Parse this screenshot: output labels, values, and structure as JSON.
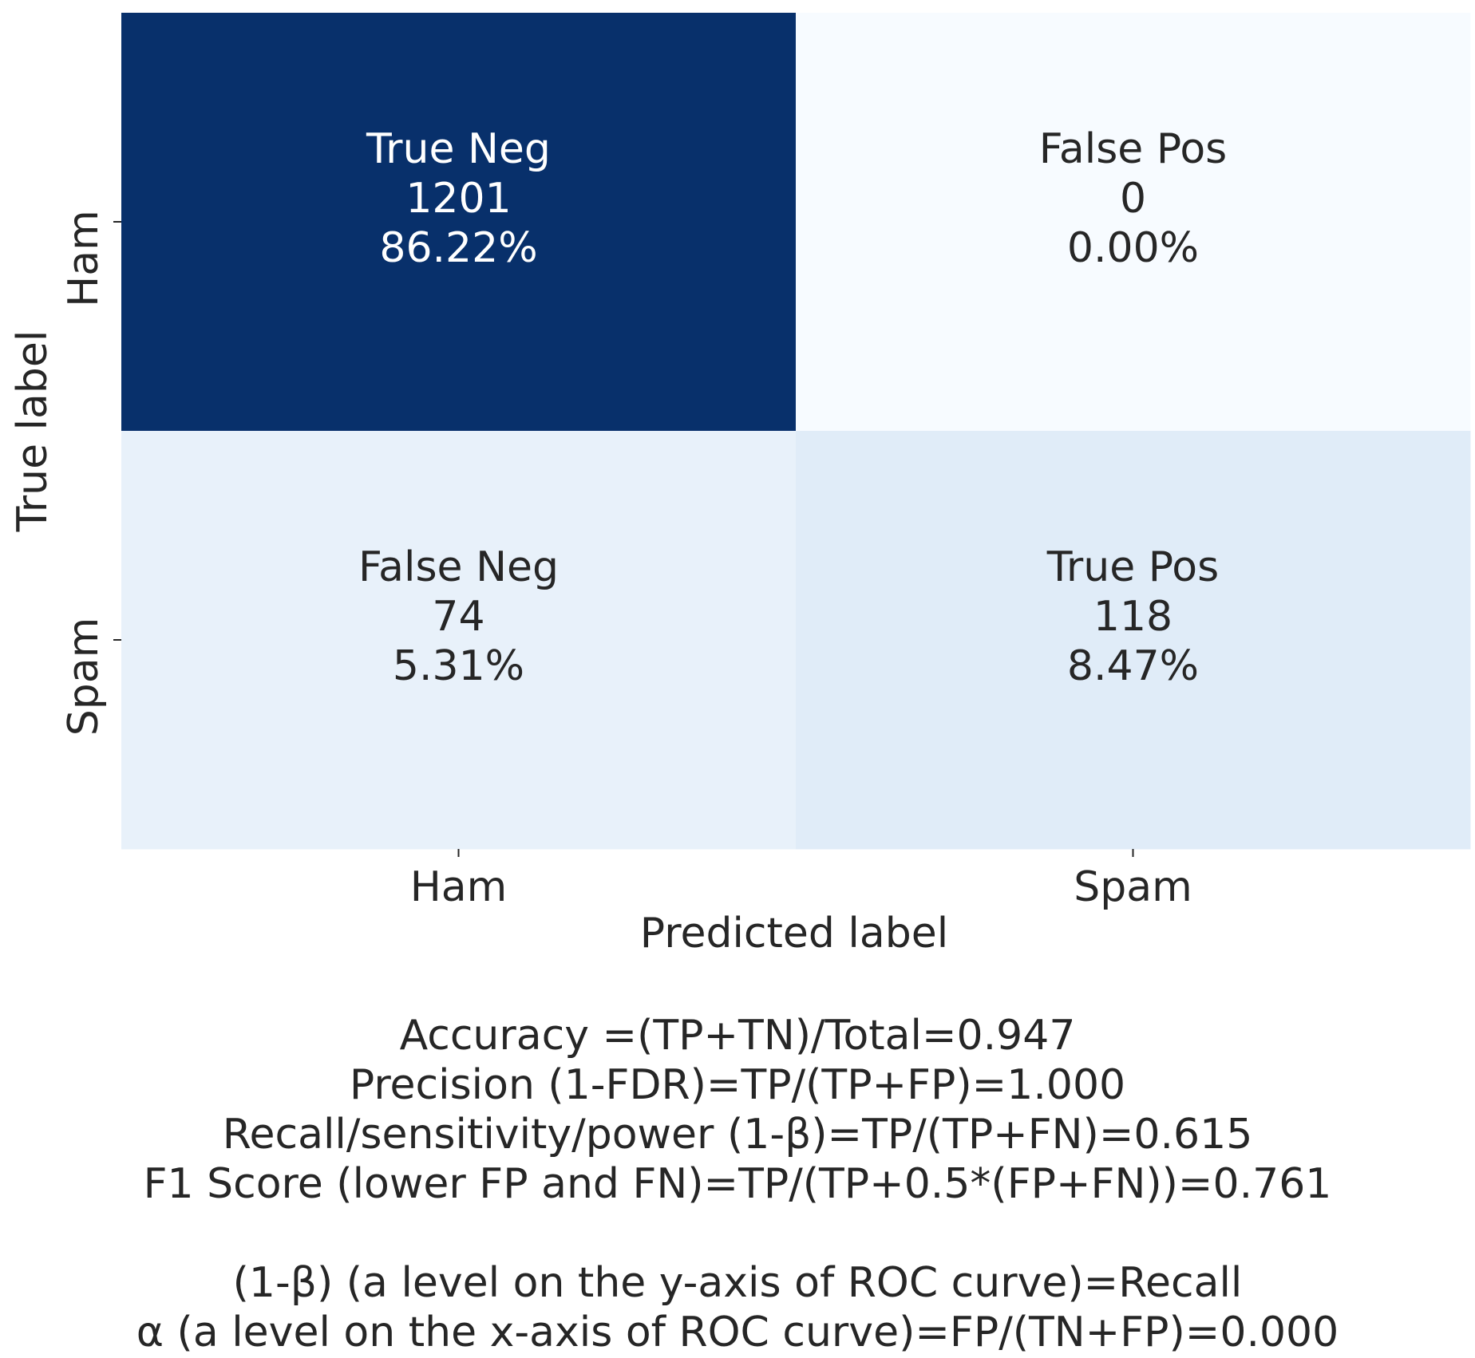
{
  "chart_data": {
    "type": "heatmap",
    "title": "",
    "xlabel": "Predicted label",
    "ylabel": "True label",
    "x_categories": [
      "Ham",
      "Spam"
    ],
    "y_categories": [
      "Ham",
      "Spam"
    ],
    "colormap": "Blues",
    "cells": [
      {
        "row": 0,
        "col": 0,
        "name": "True Neg",
        "count": 1201,
        "percent": "86.22%",
        "fill": "#08306b",
        "text_color": "#ffffff"
      },
      {
        "row": 0,
        "col": 1,
        "name": "False Pos",
        "count": 0,
        "percent": "0.00%",
        "fill": "#f7fbff",
        "text_color": "#262626"
      },
      {
        "row": 1,
        "col": 0,
        "name": "False Neg",
        "count": 74,
        "percent": "5.31%",
        "fill": "#e8f1fa",
        "text_color": "#262626"
      },
      {
        "row": 1,
        "col": 1,
        "name": "True Pos",
        "count": 118,
        "percent": "8.47%",
        "fill": "#e0ecf8",
        "text_color": "#262626"
      }
    ]
  },
  "stats": {
    "accuracy": "Accuracy =(TP+TN)/Total=0.947",
    "precision": "Precision (1-FDR)=TP/(TP+FP)=1.000",
    "recall": "Recall/sensitivity/power (1-β)=TP/(TP+FN)=0.615",
    "f1": "F1 Score (lower FP and FN)=TP/(TP+0.5*(FP+FN))=0.761",
    "beta_note": "(1-β) (a level on the y-axis of ROC curve)=Recall",
    "alpha_note": "α (a level on the x-axis of ROC curve)=FP/(TN+FP)=0.000"
  }
}
